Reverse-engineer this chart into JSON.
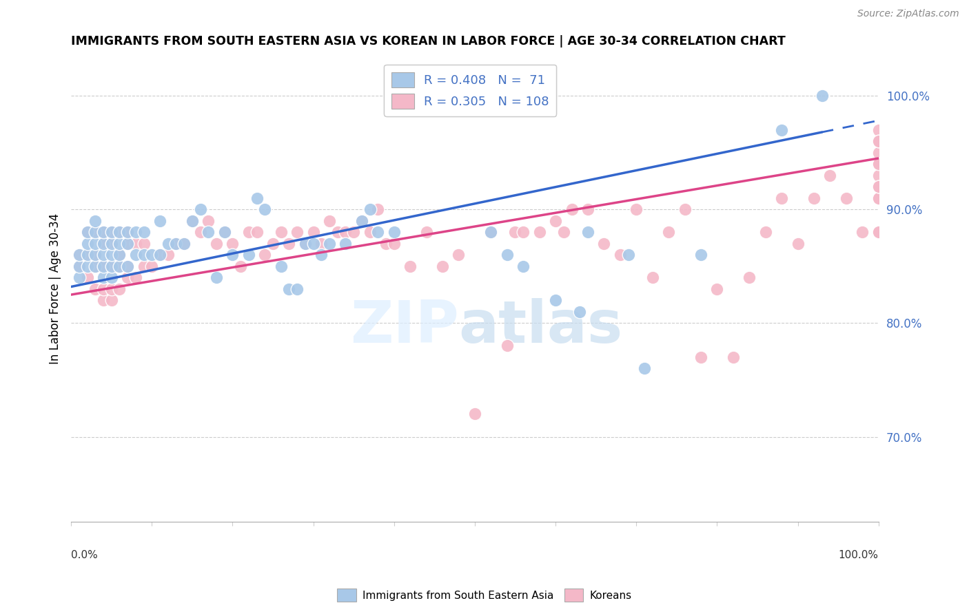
{
  "title": "IMMIGRANTS FROM SOUTH EASTERN ASIA VS KOREAN IN LABOR FORCE | AGE 30-34 CORRELATION CHART",
  "source": "Source: ZipAtlas.com",
  "ylabel": "In Labor Force | Age 30-34",
  "ytick_labels": [
    "70.0%",
    "80.0%",
    "90.0%",
    "100.0%"
  ],
  "ytick_values": [
    0.7,
    0.8,
    0.9,
    1.0
  ],
  "xlim": [
    0.0,
    1.0
  ],
  "ylim": [
    0.625,
    1.035
  ],
  "blue_color": "#a8c8e8",
  "pink_color": "#f4b8c8",
  "blue_line_color": "#3366cc",
  "pink_line_color": "#dd4488",
  "legend_blue_label": "R = 0.408   N =  71",
  "legend_pink_label": "R = 0.305   N = 108",
  "legend_bottom_blue": "Immigrants from South Eastern Asia",
  "legend_bottom_pink": "Koreans",
  "blue_N": 71,
  "pink_N": 108,
  "blue_line_x0": 0.0,
  "blue_line_y0": 0.832,
  "blue_line_x1": 0.93,
  "blue_line_y1": 0.968,
  "pink_line_x0": 0.0,
  "pink_line_y0": 0.825,
  "pink_line_x1": 1.0,
  "pink_line_y1": 0.945,
  "blue_x": [
    0.01,
    0.01,
    0.01,
    0.02,
    0.02,
    0.02,
    0.02,
    0.03,
    0.03,
    0.03,
    0.03,
    0.03,
    0.04,
    0.04,
    0.04,
    0.04,
    0.04,
    0.05,
    0.05,
    0.05,
    0.05,
    0.05,
    0.06,
    0.06,
    0.06,
    0.06,
    0.07,
    0.07,
    0.07,
    0.08,
    0.08,
    0.09,
    0.09,
    0.1,
    0.11,
    0.11,
    0.12,
    0.13,
    0.14,
    0.15,
    0.16,
    0.17,
    0.18,
    0.19,
    0.2,
    0.22,
    0.23,
    0.24,
    0.26,
    0.27,
    0.28,
    0.29,
    0.3,
    0.31,
    0.32,
    0.34,
    0.36,
    0.37,
    0.38,
    0.4,
    0.52,
    0.54,
    0.56,
    0.6,
    0.63,
    0.64,
    0.69,
    0.71,
    0.78,
    0.88,
    0.93
  ],
  "blue_y": [
    0.84,
    0.85,
    0.86,
    0.85,
    0.86,
    0.87,
    0.88,
    0.85,
    0.86,
    0.87,
    0.88,
    0.89,
    0.84,
    0.85,
    0.86,
    0.87,
    0.88,
    0.84,
    0.85,
    0.86,
    0.87,
    0.88,
    0.85,
    0.86,
    0.87,
    0.88,
    0.85,
    0.87,
    0.88,
    0.86,
    0.88,
    0.86,
    0.88,
    0.86,
    0.86,
    0.89,
    0.87,
    0.87,
    0.87,
    0.89,
    0.9,
    0.88,
    0.84,
    0.88,
    0.86,
    0.86,
    0.91,
    0.9,
    0.85,
    0.83,
    0.83,
    0.87,
    0.87,
    0.86,
    0.87,
    0.87,
    0.89,
    0.9,
    0.88,
    0.88,
    0.88,
    0.86,
    0.85,
    0.82,
    0.81,
    0.88,
    0.86,
    0.76,
    0.86,
    0.97,
    1.0
  ],
  "pink_x": [
    0.01,
    0.01,
    0.02,
    0.02,
    0.02,
    0.03,
    0.03,
    0.03,
    0.03,
    0.04,
    0.04,
    0.04,
    0.04,
    0.04,
    0.05,
    0.05,
    0.05,
    0.05,
    0.05,
    0.06,
    0.06,
    0.06,
    0.06,
    0.07,
    0.07,
    0.07,
    0.07,
    0.08,
    0.08,
    0.09,
    0.09,
    0.1,
    0.11,
    0.12,
    0.13,
    0.14,
    0.15,
    0.16,
    0.17,
    0.18,
    0.19,
    0.2,
    0.21,
    0.22,
    0.23,
    0.24,
    0.25,
    0.26,
    0.27,
    0.28,
    0.29,
    0.3,
    0.31,
    0.32,
    0.33,
    0.34,
    0.35,
    0.36,
    0.37,
    0.38,
    0.39,
    0.4,
    0.42,
    0.44,
    0.46,
    0.48,
    0.5,
    0.52,
    0.54,
    0.55,
    0.56,
    0.58,
    0.6,
    0.61,
    0.62,
    0.64,
    0.66,
    0.68,
    0.7,
    0.72,
    0.74,
    0.76,
    0.78,
    0.8,
    0.82,
    0.84,
    0.86,
    0.88,
    0.9,
    0.92,
    0.94,
    0.96,
    0.98,
    1.0,
    1.0,
    1.0,
    1.0,
    1.0,
    1.0,
    1.0,
    1.0,
    1.0,
    1.0,
    1.0,
    1.0,
    1.0,
    1.0,
    1.0
  ],
  "pink_y": [
    0.85,
    0.86,
    0.84,
    0.86,
    0.88,
    0.83,
    0.85,
    0.86,
    0.88,
    0.82,
    0.83,
    0.85,
    0.87,
    0.88,
    0.82,
    0.83,
    0.85,
    0.87,
    0.88,
    0.83,
    0.85,
    0.86,
    0.88,
    0.84,
    0.85,
    0.87,
    0.88,
    0.84,
    0.87,
    0.85,
    0.87,
    0.85,
    0.86,
    0.86,
    0.87,
    0.87,
    0.89,
    0.88,
    0.89,
    0.87,
    0.88,
    0.87,
    0.85,
    0.88,
    0.88,
    0.86,
    0.87,
    0.88,
    0.87,
    0.88,
    0.87,
    0.88,
    0.87,
    0.89,
    0.88,
    0.88,
    0.88,
    0.89,
    0.88,
    0.9,
    0.87,
    0.87,
    0.85,
    0.88,
    0.85,
    0.86,
    0.72,
    0.88,
    0.78,
    0.88,
    0.88,
    0.88,
    0.89,
    0.88,
    0.9,
    0.9,
    0.87,
    0.86,
    0.9,
    0.84,
    0.88,
    0.9,
    0.77,
    0.83,
    0.77,
    0.84,
    0.88,
    0.91,
    0.87,
    0.91,
    0.93,
    0.91,
    0.88,
    0.97,
    0.94,
    0.91,
    0.92,
    0.95,
    0.91,
    0.88,
    0.93,
    0.96,
    0.92,
    0.88,
    0.94,
    0.96,
    0.92,
    0.88
  ]
}
